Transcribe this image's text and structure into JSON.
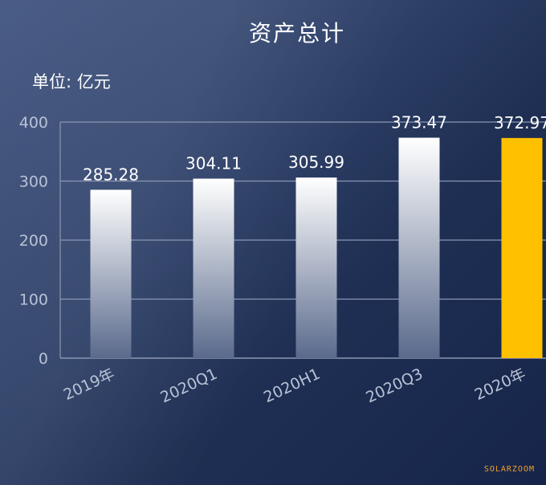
{
  "title": "资产总计",
  "unit": "单位: 亿元",
  "watermark": "SOLARZOOM",
  "colors": {
    "bar_top": "#ffffff",
    "bar_bottom": "#5a6a8c",
    "highlight": "#ffc000",
    "grid": "#8a96b3"
  },
  "chart_data": {
    "type": "bar",
    "categories": [
      "2019年",
      "2020Q1",
      "2020H1",
      "2020Q3",
      "2020年"
    ],
    "values": [
      285.28,
      304.11,
      305.99,
      373.47,
      372.97
    ],
    "value_labels": [
      "285.28",
      "304.11",
      "305.99",
      "373.47",
      "372.97"
    ],
    "highlight_index": 4,
    "yticks": [
      "0",
      "100",
      "200",
      "300",
      "400"
    ],
    "ytick_values": [
      0,
      100,
      200,
      300,
      400
    ],
    "ylim": [
      0,
      400
    ],
    "grid": true,
    "title": "资产总计",
    "ylabel": "单位: 亿元"
  }
}
